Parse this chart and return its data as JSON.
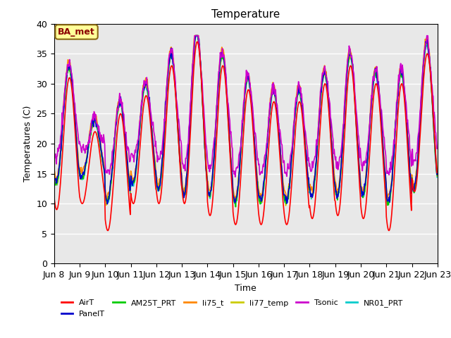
{
  "title": "Temperature",
  "xlabel": "Time",
  "ylabel": "Temperatures (C)",
  "ylim": [
    0,
    40
  ],
  "xlim_days": [
    8.0,
    23.0
  ],
  "annotation_text": "BA_met",
  "annotation_color": "#8B0000",
  "annotation_bg": "#FFFF99",
  "background_color": "#E8E8E8",
  "grid_color": "#FFFFFF",
  "series": {
    "AirT": {
      "color": "#FF0000",
      "lw": 1.2
    },
    "PanelT": {
      "color": "#0000CC",
      "lw": 1.2
    },
    "AM25T_PRT": {
      "color": "#00CC00",
      "lw": 1.2
    },
    "li75_t": {
      "color": "#FF8800",
      "lw": 1.2
    },
    "li77_temp": {
      "color": "#CCCC00",
      "lw": 1.2
    },
    "Tsonic": {
      "color": "#CC00CC",
      "lw": 1.2
    },
    "NR01_PRT": {
      "color": "#00CCCC",
      "lw": 1.2
    }
  },
  "tick_labels": [
    "Jun 8",
    "Jun 9",
    "Jun 10",
    "Jun 11",
    "Jun 12",
    "Jun 13",
    "Jun 14",
    "Jun 15",
    "Jun 16",
    "Jun 17",
    "Jun 18",
    "Jun 19",
    "Jun 20",
    "Jun 21",
    "Jun 22",
    "Jun 23"
  ],
  "tick_positions": [
    8,
    9,
    10,
    11,
    12,
    13,
    14,
    15,
    16,
    17,
    18,
    19,
    20,
    21,
    22,
    23
  ],
  "yticks": [
    0,
    5,
    10,
    15,
    20,
    25,
    30,
    35,
    40
  ]
}
